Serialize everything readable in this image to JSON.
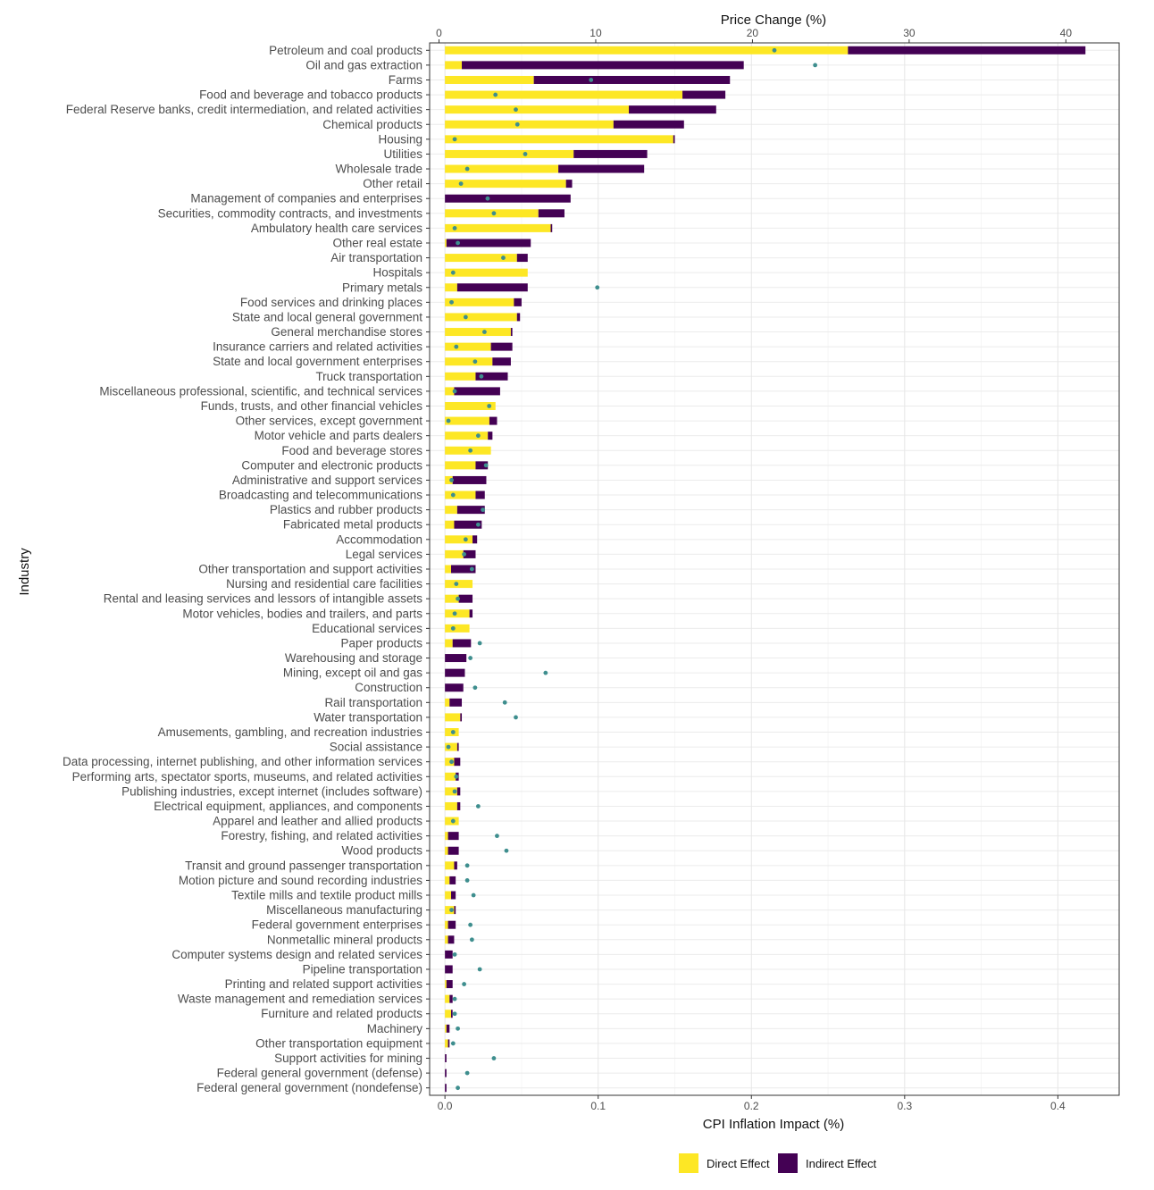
{
  "chart_data": {
    "type": "bar",
    "orientation": "horizontal",
    "stacked": true,
    "title": "",
    "xlabel": "CPI Inflation Impact (%)",
    "x2label": "Price Change (%)",
    "ylabel": "Industry",
    "xlim": [
      -0.01,
      0.44
    ],
    "xticks": [
      "0.0",
      "0.1",
      "0.2",
      "0.3",
      "0.4"
    ],
    "x2lim": [
      -0.6,
      43.4
    ],
    "x2ticks": [
      "0",
      "10",
      "20",
      "30",
      "40"
    ],
    "grid": true,
    "legend_position": "bottom",
    "series": [
      {
        "name": "Direct Effect",
        "color": "#fde725"
      },
      {
        "name": "Indirect Effect",
        "color": "#440154"
      }
    ],
    "point_series": {
      "name": "Price Change (%)",
      "color": "#3e8e8e"
    },
    "categories": [
      "Petroleum and coal products",
      "Oil and gas extraction",
      "Farms",
      "Food and beverage and tobacco products",
      "Federal Reserve banks, credit intermediation, and related activities",
      "Chemical products",
      "Housing",
      "Utilities",
      "Wholesale trade",
      "Other retail",
      "Management of companies and enterprises",
      "Securities, commodity contracts, and investments",
      "Ambulatory health care services",
      "Other real estate",
      "Air transportation",
      "Hospitals",
      "Primary metals",
      "Food services and drinking places",
      "State and local general government",
      "General merchandise stores",
      "Insurance carriers and related activities",
      "State and local government enterprises",
      "Truck transportation",
      "Miscellaneous professional, scientific, and technical services",
      "Funds, trusts, and other financial vehicles",
      "Other services, except government",
      "Motor vehicle and parts dealers",
      "Food and beverage stores",
      "Computer and electronic products",
      "Administrative and support services",
      "Broadcasting and telecommunications",
      "Plastics and rubber products",
      "Fabricated metal products",
      "Accommodation",
      "Legal services",
      "Other transportation and support activities",
      "Nursing and residential care facilities",
      "Rental and leasing services and lessors of intangible assets",
      "Motor vehicles, bodies and trailers, and parts",
      "Educational services",
      "Paper products",
      "Warehousing and storage",
      "Mining, except oil and gas",
      "Construction",
      "Rail transportation",
      "Water transportation",
      "Amusements, gambling, and recreation industries",
      "Social assistance",
      "Data processing, internet publishing, and other information services",
      "Performing arts, spectator sports, museums, and related activities",
      "Publishing industries, except internet (includes software)",
      "Electrical equipment, appliances, and components",
      "Apparel and leather and allied products",
      "Forestry, fishing, and related activities",
      "Wood products",
      "Transit and ground passenger transportation",
      "Motion picture and sound recording industries",
      "Textile mills and textile product mills",
      "Miscellaneous manufacturing",
      "Federal government enterprises",
      "Nonmetallic mineral products",
      "Computer systems design and related services",
      "Pipeline transportation",
      "Printing and related support activities",
      "Waste management and remediation services",
      "Furniture and related products",
      "Machinery",
      "Other transportation equipment",
      "Support activities for mining",
      "Federal general government (defense)",
      "Federal general government (nondefense)"
    ],
    "direct": [
      0.263,
      0.011,
      0.058,
      0.155,
      0.12,
      0.11,
      0.149,
      0.084,
      0.074,
      0.079,
      0.0,
      0.061,
      0.069,
      0.001,
      0.047,
      0.054,
      0.008,
      0.045,
      0.047,
      0.043,
      0.03,
      0.031,
      0.02,
      0.006,
      0.033,
      0.029,
      0.028,
      0.03,
      0.02,
      0.005,
      0.02,
      0.008,
      0.006,
      0.018,
      0.012,
      0.004,
      0.018,
      0.009,
      0.016,
      0.016,
      0.005,
      0.0,
      0.0,
      0.0,
      0.003,
      0.01,
      0.009,
      0.008,
      0.006,
      0.007,
      0.008,
      0.008,
      0.009,
      0.002,
      0.002,
      0.006,
      0.003,
      0.004,
      0.006,
      0.002,
      0.002,
      0.0,
      0.0,
      0.001,
      0.003,
      0.004,
      0.001,
      0.002,
      0.0,
      0.0,
      0.0
    ],
    "indirect": [
      0.155,
      0.184,
      0.128,
      0.028,
      0.057,
      0.046,
      0.001,
      0.048,
      0.056,
      0.004,
      0.082,
      0.017,
      0.001,
      0.055,
      0.007,
      0.0,
      0.046,
      0.005,
      0.002,
      0.001,
      0.014,
      0.012,
      0.021,
      0.03,
      0.0,
      0.005,
      0.003,
      0.0,
      0.008,
      0.022,
      0.006,
      0.018,
      0.018,
      0.003,
      0.008,
      0.016,
      0.0,
      0.009,
      0.002,
      0.0,
      0.012,
      0.014,
      0.013,
      0.012,
      0.008,
      0.001,
      0.0,
      0.001,
      0.004,
      0.002,
      0.002,
      0.002,
      0.0,
      0.007,
      0.007,
      0.002,
      0.004,
      0.003,
      0.001,
      0.005,
      0.004,
      0.005,
      0.005,
      0.004,
      0.002,
      0.001,
      0.002,
      0.001,
      0.001,
      0.001,
      0.001
    ],
    "price_change": [
      21.4,
      24.0,
      9.7,
      3.6,
      4.9,
      5.0,
      1.0,
      5.5,
      1.8,
      1.4,
      3.1,
      3.5,
      1.0,
      1.2,
      4.1,
      0.9,
      10.1,
      0.8,
      1.7,
      2.9,
      1.1,
      2.3,
      2.7,
      1.0,
      3.2,
      0.6,
      2.5,
      2.0,
      3.0,
      0.8,
      0.9,
      2.8,
      2.5,
      1.7,
      1.6,
      2.1,
      1.1,
      1.2,
      1.0,
      0.9,
      2.6,
      2.0,
      6.8,
      2.3,
      4.2,
      4.9,
      0.9,
      0.6,
      0.8,
      1.1,
      1.0,
      2.5,
      0.9,
      3.7,
      4.3,
      1.8,
      1.8,
      2.2,
      0.8,
      2.0,
      2.1,
      1.0,
      2.6,
      1.6,
      1.0,
      1.0,
      1.2,
      0.9,
      3.5,
      1.8,
      1.2
    ]
  }
}
